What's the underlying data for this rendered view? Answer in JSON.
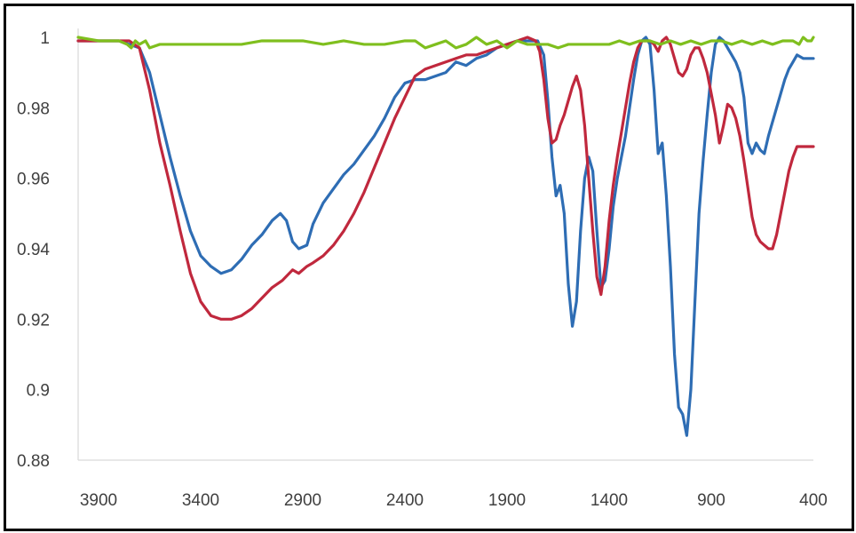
{
  "chart_data": {
    "type": "line",
    "title": "",
    "xlabel": "",
    "ylabel": "",
    "x_reversed": true,
    "xlim": [
      4000,
      400
    ],
    "ylim": [
      0.88,
      1.0
    ],
    "grid": false,
    "x_ticks": [
      {
        "value": 3900,
        "label": "3900"
      },
      {
        "value": 3400,
        "label": "3400"
      },
      {
        "value": 2900,
        "label": "2900"
      },
      {
        "value": 2400,
        "label": "2400"
      },
      {
        "value": 1900,
        "label": "1900"
      },
      {
        "value": 1400,
        "label": "1400"
      },
      {
        "value": 900,
        "label": "900"
      },
      {
        "value": 400,
        "label": "400"
      }
    ],
    "y_ticks": [
      {
        "value": 1.0,
        "label": "1"
      },
      {
        "value": 0.98,
        "label": "0.98"
      },
      {
        "value": 0.96,
        "label": "0.96"
      },
      {
        "value": 0.94,
        "label": "0.94"
      },
      {
        "value": 0.92,
        "label": "0.92"
      },
      {
        "value": 0.9,
        "label": "0.9"
      },
      {
        "value": 0.88,
        "label": "0.88"
      }
    ],
    "series": [
      {
        "color": "#2e6db4",
        "points": [
          [
            4000,
            0.999
          ],
          [
            3900,
            0.999
          ],
          [
            3800,
            0.999
          ],
          [
            3750,
            0.998
          ],
          [
            3700,
            0.997
          ],
          [
            3650,
            0.99
          ],
          [
            3600,
            0.978
          ],
          [
            3550,
            0.966
          ],
          [
            3500,
            0.955
          ],
          [
            3450,
            0.945
          ],
          [
            3400,
            0.938
          ],
          [
            3350,
            0.935
          ],
          [
            3300,
            0.933
          ],
          [
            3250,
            0.934
          ],
          [
            3200,
            0.937
          ],
          [
            3150,
            0.941
          ],
          [
            3100,
            0.944
          ],
          [
            3050,
            0.948
          ],
          [
            3010,
            0.95
          ],
          [
            2980,
            0.948
          ],
          [
            2950,
            0.942
          ],
          [
            2920,
            0.94
          ],
          [
            2880,
            0.941
          ],
          [
            2850,
            0.947
          ],
          [
            2800,
            0.953
          ],
          [
            2750,
            0.957
          ],
          [
            2700,
            0.961
          ],
          [
            2650,
            0.964
          ],
          [
            2600,
            0.968
          ],
          [
            2550,
            0.972
          ],
          [
            2500,
            0.977
          ],
          [
            2450,
            0.983
          ],
          [
            2400,
            0.987
          ],
          [
            2350,
            0.988
          ],
          [
            2300,
            0.988
          ],
          [
            2250,
            0.989
          ],
          [
            2200,
            0.99
          ],
          [
            2150,
            0.993
          ],
          [
            2100,
            0.992
          ],
          [
            2050,
            0.994
          ],
          [
            2000,
            0.995
          ],
          [
            1950,
            0.997
          ],
          [
            1900,
            0.998
          ],
          [
            1850,
            0.999
          ],
          [
            1800,
            0.999
          ],
          [
            1750,
            0.999
          ],
          [
            1720,
            0.995
          ],
          [
            1700,
            0.982
          ],
          [
            1680,
            0.966
          ],
          [
            1660,
            0.955
          ],
          [
            1640,
            0.958
          ],
          [
            1620,
            0.95
          ],
          [
            1600,
            0.93
          ],
          [
            1580,
            0.918
          ],
          [
            1560,
            0.925
          ],
          [
            1540,
            0.945
          ],
          [
            1520,
            0.96
          ],
          [
            1500,
            0.966
          ],
          [
            1480,
            0.962
          ],
          [
            1460,
            0.945
          ],
          [
            1440,
            0.929
          ],
          [
            1420,
            0.931
          ],
          [
            1400,
            0.94
          ],
          [
            1380,
            0.952
          ],
          [
            1360,
            0.96
          ],
          [
            1340,
            0.966
          ],
          [
            1320,
            0.972
          ],
          [
            1300,
            0.98
          ],
          [
            1280,
            0.988
          ],
          [
            1260,
            0.995
          ],
          [
            1240,
            0.999
          ],
          [
            1220,
            1.0
          ],
          [
            1200,
            0.998
          ],
          [
            1180,
            0.985
          ],
          [
            1160,
            0.967
          ],
          [
            1140,
            0.97
          ],
          [
            1120,
            0.955
          ],
          [
            1100,
            0.935
          ],
          [
            1080,
            0.91
          ],
          [
            1060,
            0.895
          ],
          [
            1040,
            0.893
          ],
          [
            1020,
            0.887
          ],
          [
            1000,
            0.9
          ],
          [
            980,
            0.925
          ],
          [
            960,
            0.95
          ],
          [
            940,
            0.965
          ],
          [
            920,
            0.978
          ],
          [
            900,
            0.99
          ],
          [
            880,
            0.998
          ],
          [
            860,
            1.0
          ],
          [
            840,
            0.999
          ],
          [
            820,
            0.997
          ],
          [
            800,
            0.995
          ],
          [
            780,
            0.993
          ],
          [
            760,
            0.99
          ],
          [
            740,
            0.983
          ],
          [
            720,
            0.97
          ],
          [
            700,
            0.967
          ],
          [
            680,
            0.97
          ],
          [
            660,
            0.968
          ],
          [
            640,
            0.967
          ],
          [
            620,
            0.972
          ],
          [
            600,
            0.976
          ],
          [
            580,
            0.98
          ],
          [
            560,
            0.984
          ],
          [
            540,
            0.988
          ],
          [
            520,
            0.991
          ],
          [
            500,
            0.993
          ],
          [
            480,
            0.995
          ],
          [
            450,
            0.994
          ],
          [
            400,
            0.994
          ]
        ]
      },
      {
        "color": "#c0283d",
        "points": [
          [
            4000,
            0.999
          ],
          [
            3900,
            0.999
          ],
          [
            3800,
            0.999
          ],
          [
            3750,
            0.999
          ],
          [
            3700,
            0.997
          ],
          [
            3650,
            0.985
          ],
          [
            3600,
            0.97
          ],
          [
            3550,
            0.958
          ],
          [
            3500,
            0.945
          ],
          [
            3450,
            0.933
          ],
          [
            3400,
            0.925
          ],
          [
            3350,
            0.921
          ],
          [
            3300,
            0.92
          ],
          [
            3250,
            0.92
          ],
          [
            3200,
            0.921
          ],
          [
            3150,
            0.923
          ],
          [
            3100,
            0.926
          ],
          [
            3050,
            0.929
          ],
          [
            3000,
            0.931
          ],
          [
            2950,
            0.934
          ],
          [
            2920,
            0.933
          ],
          [
            2880,
            0.935
          ],
          [
            2850,
            0.936
          ],
          [
            2800,
            0.938
          ],
          [
            2750,
            0.941
          ],
          [
            2700,
            0.945
          ],
          [
            2650,
            0.95
          ],
          [
            2600,
            0.956
          ],
          [
            2550,
            0.963
          ],
          [
            2500,
            0.97
          ],
          [
            2450,
            0.977
          ],
          [
            2400,
            0.983
          ],
          [
            2350,
            0.989
          ],
          [
            2300,
            0.991
          ],
          [
            2250,
            0.992
          ],
          [
            2200,
            0.993
          ],
          [
            2150,
            0.994
          ],
          [
            2100,
            0.995
          ],
          [
            2050,
            0.995
          ],
          [
            2000,
            0.996
          ],
          [
            1950,
            0.997
          ],
          [
            1900,
            0.998
          ],
          [
            1850,
            0.999
          ],
          [
            1800,
            1.0
          ],
          [
            1760,
            0.999
          ],
          [
            1740,
            0.996
          ],
          [
            1720,
            0.988
          ],
          [
            1700,
            0.977
          ],
          [
            1680,
            0.97
          ],
          [
            1660,
            0.971
          ],
          [
            1640,
            0.975
          ],
          [
            1620,
            0.978
          ],
          [
            1600,
            0.982
          ],
          [
            1580,
            0.986
          ],
          [
            1560,
            0.989
          ],
          [
            1540,
            0.985
          ],
          [
            1520,
            0.975
          ],
          [
            1500,
            0.96
          ],
          [
            1480,
            0.945
          ],
          [
            1460,
            0.932
          ],
          [
            1440,
            0.927
          ],
          [
            1420,
            0.935
          ],
          [
            1400,
            0.948
          ],
          [
            1380,
            0.958
          ],
          [
            1360,
            0.966
          ],
          [
            1340,
            0.973
          ],
          [
            1320,
            0.98
          ],
          [
            1300,
            0.987
          ],
          [
            1280,
            0.993
          ],
          [
            1260,
            0.997
          ],
          [
            1240,
            0.999
          ],
          [
            1220,
            0.999
          ],
          [
            1200,
            0.999
          ],
          [
            1180,
            0.998
          ],
          [
            1160,
            0.996
          ],
          [
            1140,
            0.999
          ],
          [
            1120,
            1.0
          ],
          [
            1100,
            0.998
          ],
          [
            1080,
            0.994
          ],
          [
            1060,
            0.99
          ],
          [
            1040,
            0.989
          ],
          [
            1020,
            0.991
          ],
          [
            1000,
            0.995
          ],
          [
            980,
            0.997
          ],
          [
            960,
            0.997
          ],
          [
            940,
            0.994
          ],
          [
            920,
            0.99
          ],
          [
            900,
            0.984
          ],
          [
            880,
            0.978
          ],
          [
            860,
            0.97
          ],
          [
            840,
            0.975
          ],
          [
            820,
            0.981
          ],
          [
            800,
            0.98
          ],
          [
            780,
            0.977
          ],
          [
            760,
            0.972
          ],
          [
            740,
            0.965
          ],
          [
            720,
            0.957
          ],
          [
            700,
            0.949
          ],
          [
            680,
            0.944
          ],
          [
            660,
            0.942
          ],
          [
            640,
            0.941
          ],
          [
            620,
            0.94
          ],
          [
            600,
            0.94
          ],
          [
            580,
            0.944
          ],
          [
            560,
            0.95
          ],
          [
            540,
            0.956
          ],
          [
            520,
            0.962
          ],
          [
            500,
            0.966
          ],
          [
            480,
            0.969
          ],
          [
            440,
            0.969
          ],
          [
            400,
            0.969
          ]
        ]
      },
      {
        "color": "#7fbf1e",
        "points": [
          [
            4000,
            1.0
          ],
          [
            3900,
            0.999
          ],
          [
            3800,
            0.999
          ],
          [
            3760,
            0.998
          ],
          [
            3740,
            0.997
          ],
          [
            3720,
            0.999
          ],
          [
            3700,
            0.998
          ],
          [
            3670,
            0.999
          ],
          [
            3650,
            0.997
          ],
          [
            3600,
            0.998
          ],
          [
            3500,
            0.998
          ],
          [
            3400,
            0.998
          ],
          [
            3300,
            0.998
          ],
          [
            3200,
            0.998
          ],
          [
            3100,
            0.999
          ],
          [
            3000,
            0.999
          ],
          [
            2900,
            0.999
          ],
          [
            2800,
            0.998
          ],
          [
            2700,
            0.999
          ],
          [
            2600,
            0.998
          ],
          [
            2500,
            0.998
          ],
          [
            2400,
            0.999
          ],
          [
            2350,
            0.999
          ],
          [
            2300,
            0.997
          ],
          [
            2250,
            0.998
          ],
          [
            2200,
            0.999
          ],
          [
            2150,
            0.997
          ],
          [
            2100,
            0.998
          ],
          [
            2050,
            1.0
          ],
          [
            2000,
            0.998
          ],
          [
            1950,
            0.999
          ],
          [
            1900,
            0.997
          ],
          [
            1850,
            0.999
          ],
          [
            1800,
            0.998
          ],
          [
            1750,
            0.998
          ],
          [
            1700,
            0.998
          ],
          [
            1650,
            0.997
          ],
          [
            1600,
            0.998
          ],
          [
            1550,
            0.998
          ],
          [
            1500,
            0.998
          ],
          [
            1450,
            0.998
          ],
          [
            1400,
            0.998
          ],
          [
            1350,
            0.999
          ],
          [
            1300,
            0.998
          ],
          [
            1250,
            0.999
          ],
          [
            1200,
            0.999
          ],
          [
            1150,
            0.998
          ],
          [
            1100,
            0.999
          ],
          [
            1050,
            0.998
          ],
          [
            1000,
            0.999
          ],
          [
            950,
            0.998
          ],
          [
            900,
            0.999
          ],
          [
            850,
            0.999
          ],
          [
            800,
            0.998
          ],
          [
            750,
            0.999
          ],
          [
            700,
            0.998
          ],
          [
            650,
            0.999
          ],
          [
            600,
            0.998
          ],
          [
            550,
            0.999
          ],
          [
            500,
            0.999
          ],
          [
            470,
            0.998
          ],
          [
            450,
            1.0
          ],
          [
            430,
            0.999
          ],
          [
            410,
            0.999
          ],
          [
            400,
            1.0
          ]
        ]
      }
    ]
  }
}
